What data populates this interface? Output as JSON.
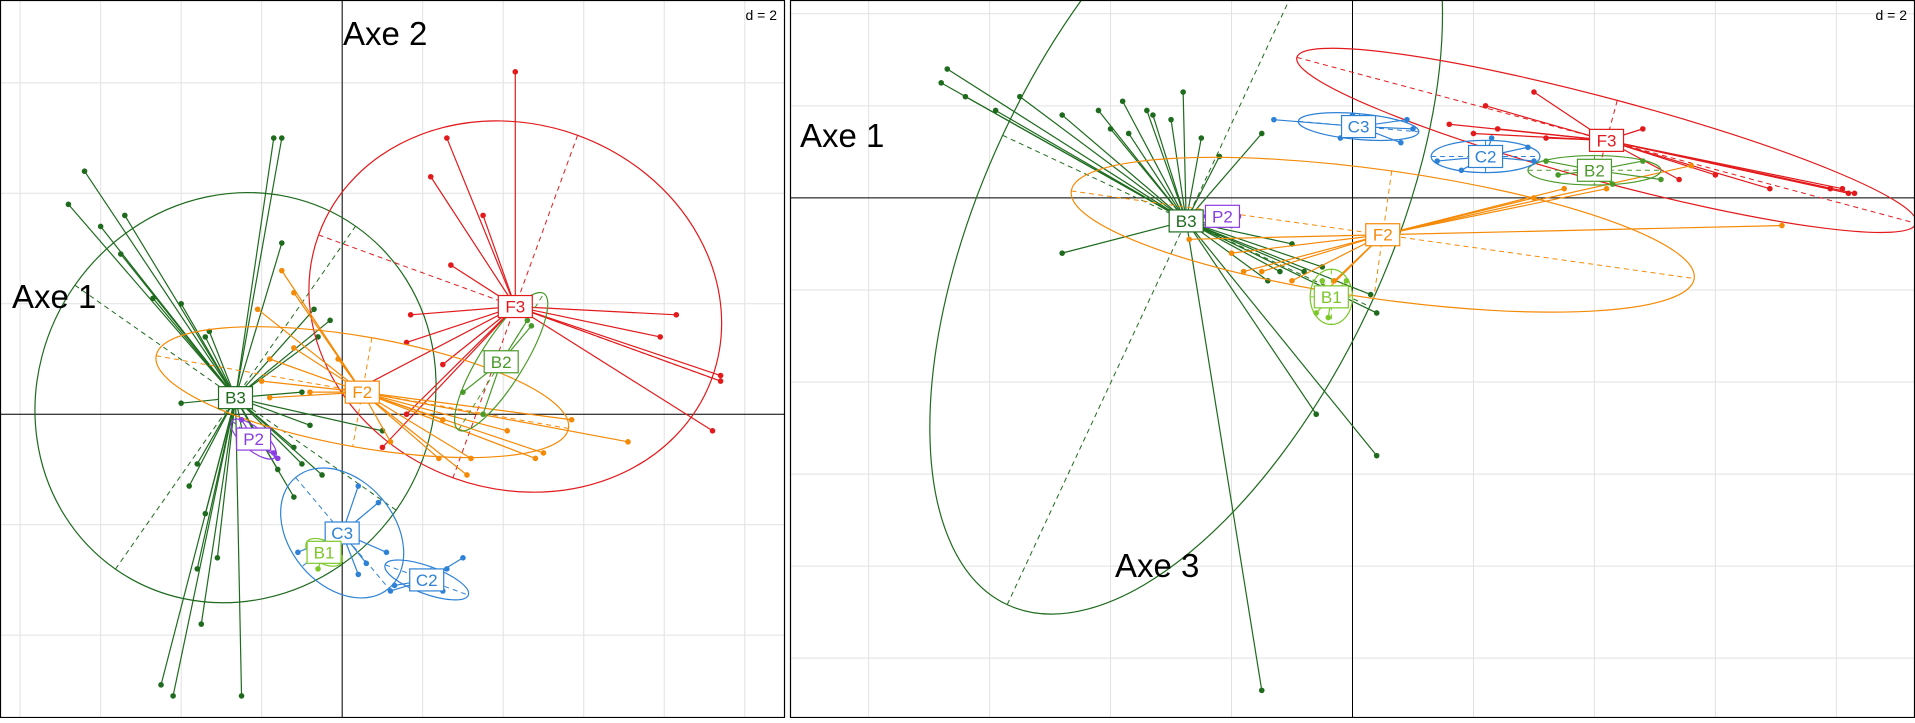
{
  "chart_data": [
    {
      "type": "scatter",
      "panel_label": "d = 2",
      "xlabel": "Axe 1",
      "ylabel": "Axe 2",
      "xlim": [
        -8.5,
        11
      ],
      "ylim": [
        -5.5,
        7.5
      ],
      "grid": true,
      "series": [
        {
          "name": "B3",
          "color": "#1e6b1e",
          "center": [
            -2.65,
            0.3
          ],
          "ellipse": {
            "rx": 5.2,
            "ry": 3.55,
            "angle": 55
          },
          "points": [
            [
              -6.4,
              4.4
            ],
            [
              -6.8,
              3.8
            ],
            [
              -6.0,
              3.4
            ],
            [
              -5.5,
              2.9
            ],
            [
              -5.4,
              3.6
            ],
            [
              -4.7,
              2.1
            ],
            [
              -4.0,
              2.0
            ],
            [
              -3.4,
              1.4
            ],
            [
              -3.3,
              1.5
            ],
            [
              -1.7,
              5.0
            ],
            [
              -1.5,
              5.0
            ],
            [
              -1.5,
              3.1
            ],
            [
              -4.0,
              0.2
            ],
            [
              -2.2,
              -0.3
            ],
            [
              -2.4,
              -0.6
            ],
            [
              -3.6,
              -0.9
            ],
            [
              -3.8,
              -1.3
            ],
            [
              -3.4,
              -1.8
            ],
            [
              -3.1,
              -2.6
            ],
            [
              -3.6,
              -2.8
            ],
            [
              -3.5,
              -3.8
            ],
            [
              -4.5,
              -4.9
            ],
            [
              -4.2,
              -5.1
            ],
            [
              -2.5,
              -5.1
            ],
            [
              -1.2,
              -1.5
            ],
            [
              -1.6,
              -1.0
            ],
            [
              -1.2,
              -0.6
            ],
            [
              -1.0,
              -0.9
            ],
            [
              -0.8,
              -0.2
            ],
            [
              -1.0,
              0.4
            ],
            [
              -0.3,
              1.7
            ],
            [
              -0.6,
              1.4
            ],
            [
              -0.5,
              -1.1
            ],
            [
              1.0,
              -0.3
            ],
            [
              -0.7,
              1.9
            ]
          ]
        },
        {
          "name": "F3",
          "color": "#e31a1c",
          "center": [
            4.3,
            1.95
          ],
          "ellipse": {
            "rx": 5.2,
            "ry": 3.3,
            "angle": -20
          },
          "points": [
            [
              4.3,
              6.2
            ],
            [
              2.6,
              5.0
            ],
            [
              2.2,
              4.3
            ],
            [
              3.5,
              3.6
            ],
            [
              2.7,
              2.7
            ],
            [
              1.6,
              1.3
            ],
            [
              1.7,
              1.8
            ],
            [
              8.3,
              1.8
            ],
            [
              7.9,
              1.4
            ],
            [
              9.4,
              0.7
            ],
            [
              9.4,
              0.6
            ],
            [
              9.2,
              -0.3
            ],
            [
              1.0,
              -0.6
            ],
            [
              1.6,
              0.0
            ],
            [
              0.5,
              0.5
            ],
            [
              2.5,
              0.9
            ]
          ]
        },
        {
          "name": "F2",
          "color": "#f58a07",
          "center": [
            0.5,
            0.4
          ],
          "ellipse": {
            "rx": 5.2,
            "ry": 1.0,
            "angle": -10
          },
          "points": [
            [
              -1.8,
              1.0
            ],
            [
              -1.2,
              1.2
            ],
            [
              -1.8,
              0.3
            ],
            [
              -2.0,
              0.6
            ],
            [
              -0.8,
              0.4
            ],
            [
              -0.1,
              1.0
            ],
            [
              -1.5,
              2.6
            ],
            [
              -2.1,
              1.9
            ],
            [
              -1.2,
              2.2
            ],
            [
              2.5,
              -0.1
            ],
            [
              2.4,
              -0.8
            ],
            [
              3.2,
              -0.8
            ],
            [
              4.1,
              -0.3
            ],
            [
              5.7,
              -0.1
            ],
            [
              5.0,
              -0.7
            ],
            [
              4.8,
              -0.8
            ],
            [
              7.1,
              -0.5
            ],
            [
              3.1,
              -1.1
            ],
            [
              1.2,
              -0.5
            ]
          ]
        },
        {
          "name": "B2",
          "color": "#4a9a2a",
          "center": [
            3.95,
            0.95
          ],
          "ellipse": {
            "rx": 2.0,
            "ry": 0.4,
            "angle": 58
          },
          "points": [
            [
              3.0,
              0.4
            ],
            [
              4.7,
              1.6
            ],
            [
              3.5,
              0.0
            ],
            [
              4.3,
              1.1
            ],
            [
              4.6,
              1.7
            ]
          ]
        },
        {
          "name": "P2",
          "color": "#8a3ee0",
          "center": [
            -2.2,
            -0.45
          ],
          "ellipse": {
            "rx": 0.7,
            "ry": 0.2,
            "angle": -40
          },
          "points": [
            [
              -1.6,
              -0.8
            ],
            [
              -1.7,
              -0.7
            ],
            [
              -2.5,
              -0.1
            ],
            [
              -1.9,
              -0.6
            ]
          ]
        },
        {
          "name": "C3",
          "color": "#2e82d6",
          "center": [
            0.0,
            -2.15
          ],
          "ellipse": {
            "rx": 1.8,
            "ry": 0.95,
            "angle": -50
          },
          "points": [
            [
              0.4,
              -1.3
            ],
            [
              0.9,
              -1.6
            ],
            [
              -0.6,
              -2.5
            ],
            [
              0.6,
              -2.7
            ],
            [
              -1.1,
              -2.5
            ],
            [
              0.4,
              -2.9
            ],
            [
              1.1,
              -2.5
            ]
          ]
        },
        {
          "name": "C2",
          "color": "#2e82d6",
          "center": [
            2.1,
            -3.0
          ],
          "ellipse": {
            "rx": 1.1,
            "ry": 0.25,
            "angle": -20
          },
          "points": [
            [
              1.3,
              -3.1
            ],
            [
              2.6,
              -2.8
            ],
            [
              3.0,
              -2.6
            ],
            [
              2.5,
              -3.2
            ],
            [
              1.2,
              -3.2
            ]
          ]
        },
        {
          "name": "B1",
          "color": "#7cc82a",
          "center": [
            -0.45,
            -2.5
          ],
          "ellipse": {
            "rx": 0.5,
            "ry": 0.2,
            "angle": -30
          },
          "points": [
            [
              -0.3,
              -2.4
            ],
            [
              -0.8,
              -2.6
            ],
            [
              0.1,
              -2.3
            ],
            [
              -0.6,
              -2.8
            ]
          ]
        }
      ]
    },
    {
      "type": "scatter",
      "panel_label": "d = 2",
      "xlabel": "Axe 1",
      "ylabel": "Axe 3",
      "xlim": [
        -9.3,
        9.3
      ],
      "ylim": [
        -11.3,
        4.3
      ],
      "grid": true,
      "series": [
        {
          "name": "B3",
          "color": "#1e6b1e",
          "center": [
            -2.75,
            -0.5
          ],
          "ellipse": {
            "rx": 7.0,
            "ry": 4.4,
            "angle": 65
          },
          "points": [
            [
              -6.7,
              2.8
            ],
            [
              -6.8,
              2.5
            ],
            [
              -6.4,
              2.2
            ],
            [
              -5.9,
              1.9
            ],
            [
              -5.5,
              2.2
            ],
            [
              -4.8,
              1.8
            ],
            [
              -4.2,
              1.9
            ],
            [
              -3.8,
              2.1
            ],
            [
              -4.0,
              1.5
            ],
            [
              -3.7,
              1.4
            ],
            [
              -3.4,
              1.9
            ],
            [
              -3.3,
              1.8
            ],
            [
              -3.0,
              1.7
            ],
            [
              -2.8,
              2.3
            ],
            [
              -2.5,
              1.3
            ],
            [
              -1.5,
              1.4
            ],
            [
              -2.2,
              0.9
            ],
            [
              -0.8,
              -1.6
            ],
            [
              -1.2,
              -1.6
            ],
            [
              -1.4,
              -1.8
            ],
            [
              -0.5,
              -1.5
            ],
            [
              0.3,
              -2.1
            ],
            [
              0.4,
              -2.5
            ],
            [
              -0.6,
              -4.7
            ],
            [
              0.4,
              -5.6
            ],
            [
              -1.5,
              -10.7
            ],
            [
              -4.8,
              -1.2
            ],
            [
              -2.0,
              -0.6
            ],
            [
              -1.0,
              -1.0
            ]
          ]
        },
        {
          "name": "F3",
          "color": "#e31a1c",
          "center": [
            4.2,
            1.25
          ],
          "ellipse": {
            "rx": 5.3,
            "ry": 0.9,
            "angle": -15
          },
          "points": [
            [
              3.0,
              2.3
            ],
            [
              2.2,
              2.0
            ],
            [
              1.6,
              1.6
            ],
            [
              2.0,
              1.4
            ],
            [
              2.4,
              1.5
            ],
            [
              3.2,
              1.3
            ],
            [
              4.8,
              1.5
            ],
            [
              8.2,
              0.1
            ],
            [
              8.1,
              0.2
            ],
            [
              7.9,
              0.2
            ],
            [
              8.3,
              0.1
            ],
            [
              6.9,
              0.2
            ],
            [
              5.4,
              0.4
            ],
            [
              6.0,
              0.5
            ]
          ]
        },
        {
          "name": "F2",
          "color": "#f58a07",
          "center": [
            0.5,
            -0.8
          ],
          "ellipse": {
            "rx": 5.2,
            "ry": 1.4,
            "angle": -8
          },
          "points": [
            [
              3.0,
              0.0
            ],
            [
              3.5,
              0.2
            ],
            [
              4.2,
              0.2
            ],
            [
              5.6,
              0.7
            ],
            [
              7.1,
              -0.6
            ],
            [
              -2.7,
              -0.9
            ],
            [
              -2.0,
              -1.2
            ],
            [
              -1.8,
              -1.6
            ],
            [
              -1.5,
              -1.6
            ],
            [
              -1.0,
              -1.8
            ],
            [
              -0.5,
              -2.1
            ],
            [
              -0.3,
              -1.8
            ],
            [
              0.5,
              -0.9
            ]
          ]
        },
        {
          "name": "B2",
          "color": "#4a9a2a",
          "center": [
            4.0,
            0.6
          ],
          "ellipse": {
            "rx": 1.1,
            "ry": 0.32,
            "angle": 0
          },
          "points": [
            [
              3.2,
              0.8
            ],
            [
              4.8,
              0.8
            ],
            [
              5.1,
              0.4
            ],
            [
              4.3,
              0.3
            ],
            [
              3.4,
              0.5
            ]
          ]
        },
        {
          "name": "C3",
          "color": "#2e82d6",
          "center": [
            0.1,
            1.55
          ],
          "ellipse": {
            "rx": 1.0,
            "ry": 0.28,
            "angle": -5
          },
          "points": [
            [
              -1.3,
              1.7
            ],
            [
              -0.2,
              1.3
            ],
            [
              0.8,
              1.2
            ],
            [
              1.0,
              1.5
            ],
            [
              0.9,
              1.7
            ],
            [
              0.0,
              1.8
            ]
          ]
        },
        {
          "name": "C2",
          "color": "#2e82d6",
          "center": [
            2.2,
            0.9
          ],
          "ellipse": {
            "rx": 0.9,
            "ry": 0.35,
            "angle": 0
          },
          "points": [
            [
              1.4,
              0.8
            ],
            [
              2.3,
              1.3
            ],
            [
              2.9,
              1.1
            ],
            [
              3.0,
              0.8
            ],
            [
              1.8,
              0.6
            ]
          ]
        },
        {
          "name": "P2",
          "color": "#8a3ee0",
          "center": [
            -2.15,
            -0.4
          ],
          "ellipse": {
            "rx": 0.3,
            "ry": 0.15,
            "angle": 0
          },
          "points": [
            [
              -2.4,
              -0.3
            ],
            [
              -2.2,
              -0.5
            ],
            [
              -2.0,
              -0.3
            ]
          ]
        },
        {
          "name": "B1",
          "color": "#7cc82a",
          "center": [
            -0.35,
            -2.15
          ],
          "ellipse": {
            "rx": 0.35,
            "ry": 0.6,
            "angle": 0
          },
          "points": [
            [
              -0.1,
              -1.8
            ],
            [
              -0.5,
              -1.8
            ],
            [
              -0.4,
              -2.6
            ],
            [
              -0.6,
              -2.5
            ],
            [
              -0.2,
              -2.3
            ]
          ]
        }
      ]
    }
  ]
}
